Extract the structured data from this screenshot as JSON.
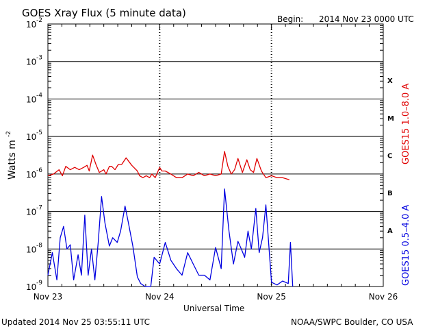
{
  "header": {
    "title": "GOES Xray Flux (5 minute data)",
    "begin_label": "Begin:",
    "begin_value": "2014 Nov 23 0000 UTC"
  },
  "footer": {
    "updated": "Updated 2014 Nov 25 03:55:11 UTC",
    "credit": "NOAA/SWPC Boulder, CO USA"
  },
  "chart_data": {
    "type": "line",
    "title": "GOES Xray Flux (5 minute data)",
    "xlabel": "Universal Time",
    "ylabel": "Watts m",
    "ylabel_exponent": "-2",
    "yscale": "log",
    "ylim": [
      1e-09,
      0.01
    ],
    "y_tick_labels": [
      {
        "base": "10",
        "exp": "-9",
        "value": 1e-09
      },
      {
        "base": "10",
        "exp": "-8",
        "value": 1e-08
      },
      {
        "base": "10",
        "exp": "-7",
        "value": 1e-07
      },
      {
        "base": "10",
        "exp": "-6",
        "value": 1e-06
      },
      {
        "base": "10",
        "exp": "-5",
        "value": 1e-05
      },
      {
        "base": "10",
        "exp": "-4",
        "value": 0.0001
      },
      {
        "base": "10",
        "exp": "-3",
        "value": 0.001
      },
      {
        "base": "10",
        "exp": "-2",
        "value": 0.01
      }
    ],
    "xlim": [
      "2014-11-23",
      "2014-11-26"
    ],
    "x_tick_labels": [
      "Nov 23",
      "Nov 24",
      "Nov 25",
      "Nov 26"
    ],
    "x_unit": "days since Nov 23 00:00 UTC",
    "flare_classes": [
      {
        "label": "A",
        "value": 1e-08
      },
      {
        "label": "B",
        "value": 1e-07
      },
      {
        "label": "C",
        "value": 1e-06
      },
      {
        "label": "M",
        "value": 1e-05
      },
      {
        "label": "X",
        "value": 0.0001
      }
    ],
    "grid": true,
    "legend_position": "right",
    "series": [
      {
        "name": "GOES15 1.0–8.0 A",
        "color": "#e00000",
        "x": [
          0.0,
          0.05,
          0.1,
          0.13,
          0.16,
          0.2,
          0.24,
          0.28,
          0.32,
          0.35,
          0.37,
          0.4,
          0.43,
          0.46,
          0.5,
          0.52,
          0.55,
          0.57,
          0.6,
          0.63,
          0.66,
          0.7,
          0.75,
          0.8,
          0.82,
          0.85,
          0.88,
          0.91,
          0.93,
          0.96,
          1.0,
          1.02,
          1.05,
          1.1,
          1.15,
          1.2,
          1.25,
          1.3,
          1.35,
          1.4,
          1.45,
          1.5,
          1.55,
          1.58,
          1.61,
          1.64,
          1.67,
          1.7,
          1.74,
          1.78,
          1.81,
          1.84,
          1.87,
          1.91,
          1.95,
          2.0,
          2.05,
          2.1,
          2.16
        ],
        "y": [
          9e-07,
          1e-06,
          1.3e-06,
          9e-07,
          1.6e-06,
          1.3e-06,
          1.5e-06,
          1.3e-06,
          1.5e-06,
          1.7e-06,
          1.2e-06,
          3.2e-06,
          1.8e-06,
          1.1e-06,
          1.3e-06,
          1e-06,
          1.6e-06,
          1.6e-06,
          1.3e-06,
          1.8e-06,
          1.8e-06,
          2.7e-06,
          1.7e-06,
          1.2e-06,
          9e-07,
          8e-07,
          9e-07,
          8e-07,
          1e-06,
          8e-07,
          1.5e-06,
          1.2e-06,
          1.2e-06,
          1e-06,
          8e-07,
          8e-07,
          1e-06,
          9e-07,
          1.1e-06,
          9e-07,
          1e-06,
          9e-07,
          1e-06,
          4e-06,
          1.6e-06,
          1e-06,
          1.3e-06,
          2.6e-06,
          1.1e-06,
          2.4e-06,
          1.3e-06,
          1.1e-06,
          2.6e-06,
          1.2e-06,
          8e-07,
          9e-07,
          8e-07,
          8e-07,
          7e-07
        ]
      },
      {
        "name": "GOES15 0.5–4.0 A",
        "color": "#0000e0",
        "x": [
          0.0,
          0.04,
          0.08,
          0.11,
          0.14,
          0.17,
          0.2,
          0.23,
          0.27,
          0.3,
          0.33,
          0.36,
          0.39,
          0.42,
          0.45,
          0.48,
          0.51,
          0.55,
          0.58,
          0.62,
          0.65,
          0.69,
          0.72,
          0.76,
          0.8,
          0.83,
          0.87,
          0.92,
          0.95,
          1.0,
          1.05,
          1.1,
          1.15,
          1.2,
          1.25,
          1.3,
          1.35,
          1.4,
          1.45,
          1.5,
          1.55,
          1.58,
          1.62,
          1.66,
          1.7,
          1.73,
          1.76,
          1.79,
          1.82,
          1.86,
          1.89,
          1.92,
          1.95,
          2.0,
          2.05,
          2.1,
          2.15,
          2.17,
          2.19
        ],
        "y": [
          2e-09,
          8e-09,
          1.5e-09,
          2e-08,
          4e-08,
          1e-08,
          1.3e-08,
          1.5e-09,
          7e-09,
          2e-09,
          8e-08,
          2e-09,
          1e-08,
          1.5e-09,
          1.5e-08,
          2.5e-07,
          5e-08,
          1.2e-08,
          2e-08,
          1.5e-08,
          3e-08,
          1.4e-07,
          5e-08,
          1.2e-08,
          1.8e-09,
          1.2e-09,
          1e-09,
          1e-09,
          6e-09,
          4e-09,
          1.5e-08,
          5e-09,
          3e-09,
          2e-09,
          8e-09,
          4e-09,
          2e-09,
          2e-09,
          1.5e-09,
          1.1e-08,
          3e-09,
          4e-07,
          3e-08,
          4e-09,
          1.6e-08,
          1e-08,
          6e-09,
          3e-08,
          1e-08,
          1.2e-07,
          8e-09,
          2e-08,
          1.5e-07,
          1.3e-09,
          1.1e-09,
          1.4e-09,
          1.2e-09,
          1.5e-08,
          1e-09
        ]
      }
    ]
  }
}
